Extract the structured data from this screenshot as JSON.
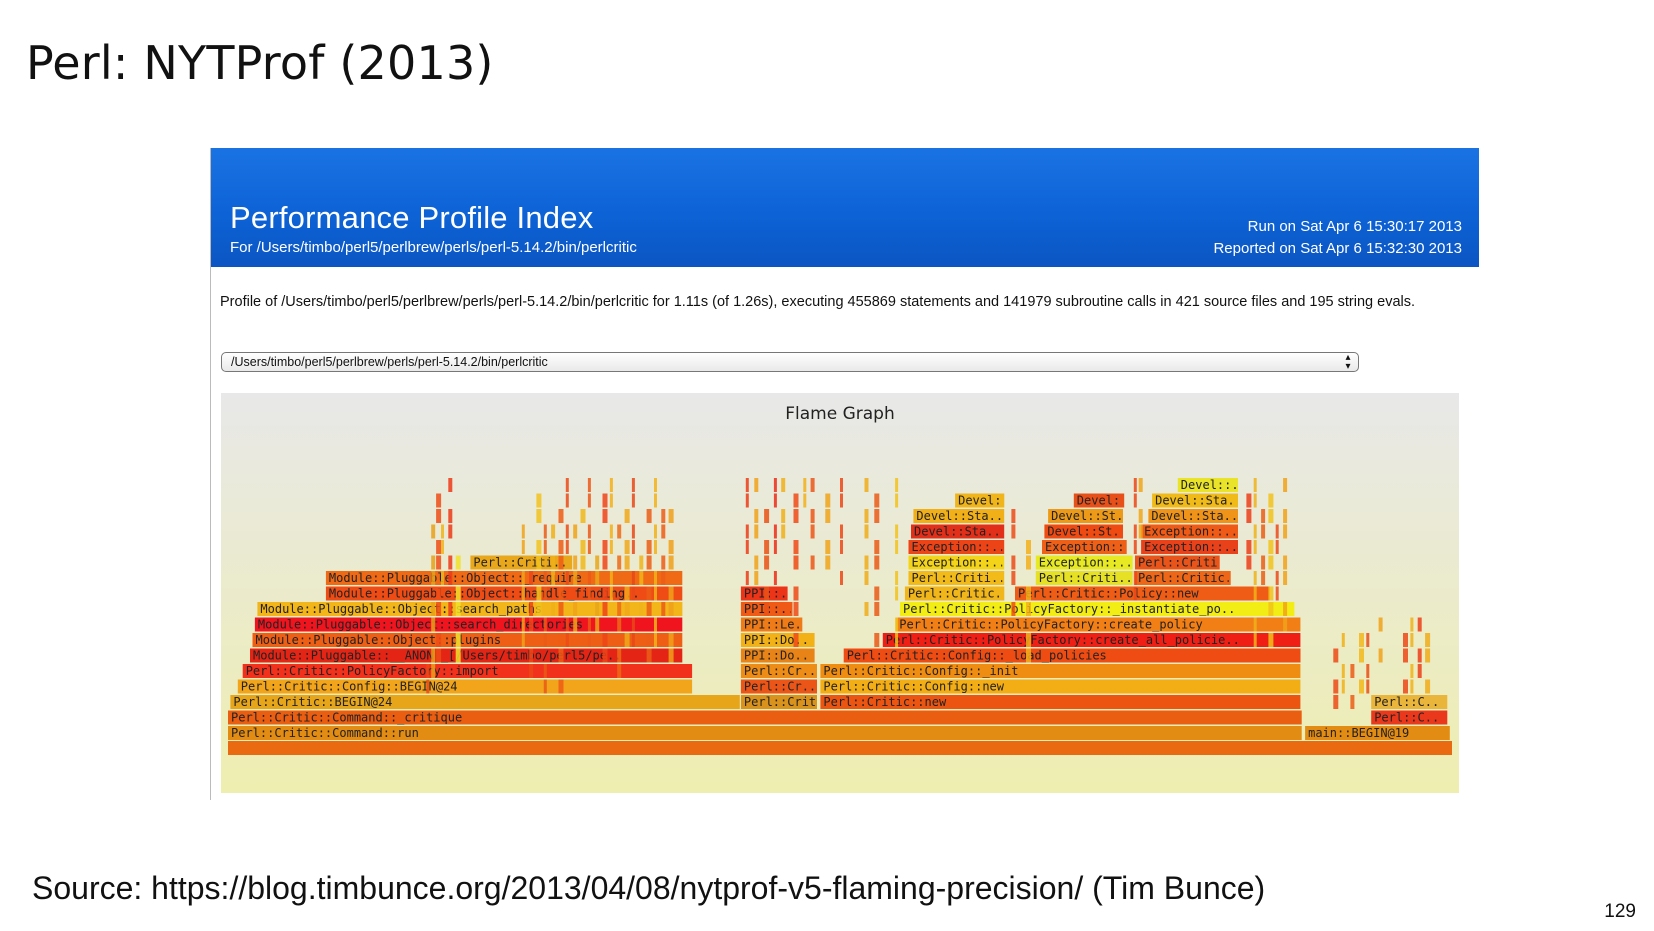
{
  "slide": {
    "title": "Perl: NYTProf (2013)",
    "source": "Source: https://blog.timbunce.org/2013/04/08/nytprof-v5-flaming-precision/ (Tim Bunce)",
    "page_number": "129"
  },
  "report": {
    "title": "Performance Profile Index",
    "subtitle": "For /Users/timbo/perl5/perlbrew/perls/perl-5.14.2/bin/perlcritic",
    "run_on": "Run on Sat Apr 6 15:30:17 2013",
    "reported_on": "Reported on Sat Apr 6 15:32:30 2013",
    "summary": "Profile of /Users/timbo/perl5/perlbrew/perls/perl-5.14.2/bin/perlcritic for 1.11s (of 1.26s), executing 455869 statements and 141979 subroutine calls in 421 source files and 195 string evals.",
    "file_select": {
      "value": "/Users/timbo/perl5/perlbrew/perls/perl-5.14.2/bin/perlcritic",
      "arrows_icon": "up-down-arrows-icon"
    },
    "colors": {
      "banner": "#0d63d6",
      "flame_bg_top": "#e8e8e8",
      "flame_bg_bottom": "#eeeeb0"
    }
  },
  "flame_graph": {
    "title": "Flame Graph",
    "frames": [
      {
        "label": "Perl::Critic::Command::run",
        "level": 1,
        "start": 0.0,
        "end": 0.878,
        "color": "#e38c13"
      },
      {
        "label": "main::BEGIN@19",
        "level": 1,
        "start": 0.88,
        "end": 0.999,
        "color": "#e38c13"
      },
      {
        "label": "Perl::Critic::Command::_critique",
        "level": 2,
        "start": 0.0,
        "end": 0.878,
        "color": "#ea5e12"
      },
      {
        "label": "Perl::C..",
        "level": 2,
        "start": 0.934,
        "end": 0.997,
        "color": "#e9381b"
      },
      {
        "label": "Perl::Critic::BEGIN@24",
        "level": 3,
        "start": 0.002,
        "end": 0.419,
        "color": "#e7a51a"
      },
      {
        "label": "Perl::Critic..",
        "level": 3,
        "start": 0.419,
        "end": 0.482,
        "color": "#d9921c"
      },
      {
        "label": "Perl::Critic::new",
        "level": 3,
        "start": 0.484,
        "end": 0.877,
        "color": "#ec5411"
      },
      {
        "label": "Perl::C..",
        "level": 3,
        "start": 0.934,
        "end": 0.997,
        "color": "#e9b53a"
      },
      {
        "label": "Perl::Critic::Config::BEGIN@24",
        "level": 4,
        "start": 0.008,
        "end": 0.38,
        "color": "#f2a41b"
      },
      {
        "label": "Perl::Cr..",
        "level": 4,
        "start": 0.419,
        "end": 0.482,
        "color": "#eb5618"
      },
      {
        "label": "Perl::Critic::Config::new",
        "level": 4,
        "start": 0.484,
        "end": 0.877,
        "color": "#f3ad15"
      },
      {
        "label": "Perl::Critic::PolicyFactory::import",
        "level": 5,
        "start": 0.012,
        "end": 0.38,
        "color": "#f2311c"
      },
      {
        "label": "Perl::Cr..",
        "level": 5,
        "start": 0.419,
        "end": 0.482,
        "color": "#ee8c18"
      },
      {
        "label": "Perl::Critic::Config::_init",
        "level": 5,
        "start": 0.484,
        "end": 0.877,
        "color": "#ef8c12"
      },
      {
        "label": "Module::Pluggable::__ANON__[/Users/timbo/perl5/pe..",
        "level": 6,
        "start": 0.018,
        "end": 0.372,
        "color": "#e42515"
      },
      {
        "label": "PPI::Do..",
        "level": 6,
        "start": 0.419,
        "end": 0.48,
        "color": "#e88318"
      },
      {
        "label": "Perl::Critic::Config::_load_policies",
        "level": 6,
        "start": 0.503,
        "end": 0.877,
        "color": "#ee4c12"
      },
      {
        "label": "Module::Pluggable::Object::plugins",
        "level": 7,
        "start": 0.02,
        "end": 0.372,
        "color": "#ee5e14"
      },
      {
        "label": "PPI::Do..",
        "level": 7,
        "start": 0.419,
        "end": 0.48,
        "color": "#f3b118"
      },
      {
        "label": "Perl::Critic::PolicyFactory::create_all_policie..",
        "level": 7,
        "start": 0.535,
        "end": 0.877,
        "color": "#f01f15"
      },
      {
        "label": "Module::Pluggable::Object::search_directories",
        "level": 8,
        "start": 0.022,
        "end": 0.372,
        "color": "#f0141f"
      },
      {
        "label": "PPI::Le..",
        "level": 8,
        "start": 0.419,
        "end": 0.47,
        "color": "#ee7a18"
      },
      {
        "label": "Perl::Critic::PolicyFactory::create_policy",
        "level": 8,
        "start": 0.546,
        "end": 0.877,
        "color": "#f27e16"
      },
      {
        "label": "Module::Pluggable::Object::search_paths",
        "level": 9,
        "start": 0.024,
        "end": 0.372,
        "color": "#f2b61b"
      },
      {
        "label": "PPI::...",
        "level": 9,
        "start": 0.419,
        "end": 0.462,
        "color": "#ef5a17"
      },
      {
        "label": "Perl::Critic::PolicyFactory::_instantiate_po..",
        "level": 9,
        "start": 0.549,
        "end": 0.872,
        "color": "#f3ed16"
      },
      {
        "label": "Module::Pluggable::Object::handle_finding..",
        "level": 10,
        "start": 0.08,
        "end": 0.372,
        "color": "#ef4c15"
      },
      {
        "label": "PPI::...",
        "level": 10,
        "start": 0.419,
        "end": 0.458,
        "color": "#ec3418"
      },
      {
        "label": "Perl::Critic..",
        "level": 10,
        "start": 0.553,
        "end": 0.635,
        "color": "#f0b61a"
      },
      {
        "label": "Perl::Critic::Policy::new",
        "level": 10,
        "start": 0.643,
        "end": 0.852,
        "color": "#ee5c15"
      },
      {
        "label": "Module::Pluggable::Object::_require",
        "level": 11,
        "start": 0.08,
        "end": 0.372,
        "color": "#f06a15"
      },
      {
        "label": "Perl::Criti..",
        "level": 11,
        "start": 0.556,
        "end": 0.635,
        "color": "#f2bb19"
      },
      {
        "label": "Perl::Criti..",
        "level": 11,
        "start": 0.66,
        "end": 0.74,
        "color": "#e7e126"
      },
      {
        "label": "Perl::Critic..",
        "level": 11,
        "start": 0.741,
        "end": 0.82,
        "color": "#ee6617"
      },
      {
        "label": "Perl::Criti..",
        "level": 12,
        "start": 0.198,
        "end": 0.282,
        "color": "#e9a81b"
      },
      {
        "label": "Exception::..",
        "level": 12,
        "start": 0.556,
        "end": 0.635,
        "color": "#f3d418"
      },
      {
        "label": "Exception::..",
        "level": 12,
        "start": 0.66,
        "end": 0.74,
        "color": "#e7ea22"
      },
      {
        "label": "Perl::Criti..",
        "level": 12,
        "start": 0.741,
        "end": 0.811,
        "color": "#e9541a"
      },
      {
        "label": "Exception::..",
        "level": 13,
        "start": 0.556,
        "end": 0.635,
        "color": "#ec4317"
      },
      {
        "label": "Exception::..",
        "level": 13,
        "start": 0.665,
        "end": 0.735,
        "color": "#ee5f18"
      },
      {
        "label": "Exception::..",
        "level": 13,
        "start": 0.746,
        "end": 0.826,
        "color": "#e9421b"
      },
      {
        "label": "Devel::Sta..",
        "level": 14,
        "start": 0.558,
        "end": 0.635,
        "color": "#e22f1a"
      },
      {
        "label": "Devel::St..",
        "level": 14,
        "start": 0.667,
        "end": 0.732,
        "color": "#f04a13"
      },
      {
        "label": "Exception::..",
        "level": 14,
        "start": 0.746,
        "end": 0.826,
        "color": "#ef5a16"
      },
      {
        "label": "Devel::Sta..",
        "level": 15,
        "start": 0.56,
        "end": 0.635,
        "color": "#f2b018"
      },
      {
        "label": "Devel::St..",
        "level": 15,
        "start": 0.67,
        "end": 0.732,
        "color": "#ec9a18"
      },
      {
        "label": "Devel::Sta..",
        "level": 15,
        "start": 0.752,
        "end": 0.826,
        "color": "#ef9418"
      },
      {
        "label": "Devel::..",
        "level": 16,
        "start": 0.594,
        "end": 0.635,
        "color": "#f0b51a"
      },
      {
        "label": "Devel::..",
        "level": 16,
        "start": 0.691,
        "end": 0.733,
        "color": "#e8501a"
      },
      {
        "label": "Devel::Sta..",
        "level": 16,
        "start": 0.755,
        "end": 0.826,
        "color": "#f0ba18"
      },
      {
        "label": "Devel::..",
        "level": 17,
        "start": 0.776,
        "end": 0.826,
        "color": "#e9e42a"
      }
    ]
  }
}
